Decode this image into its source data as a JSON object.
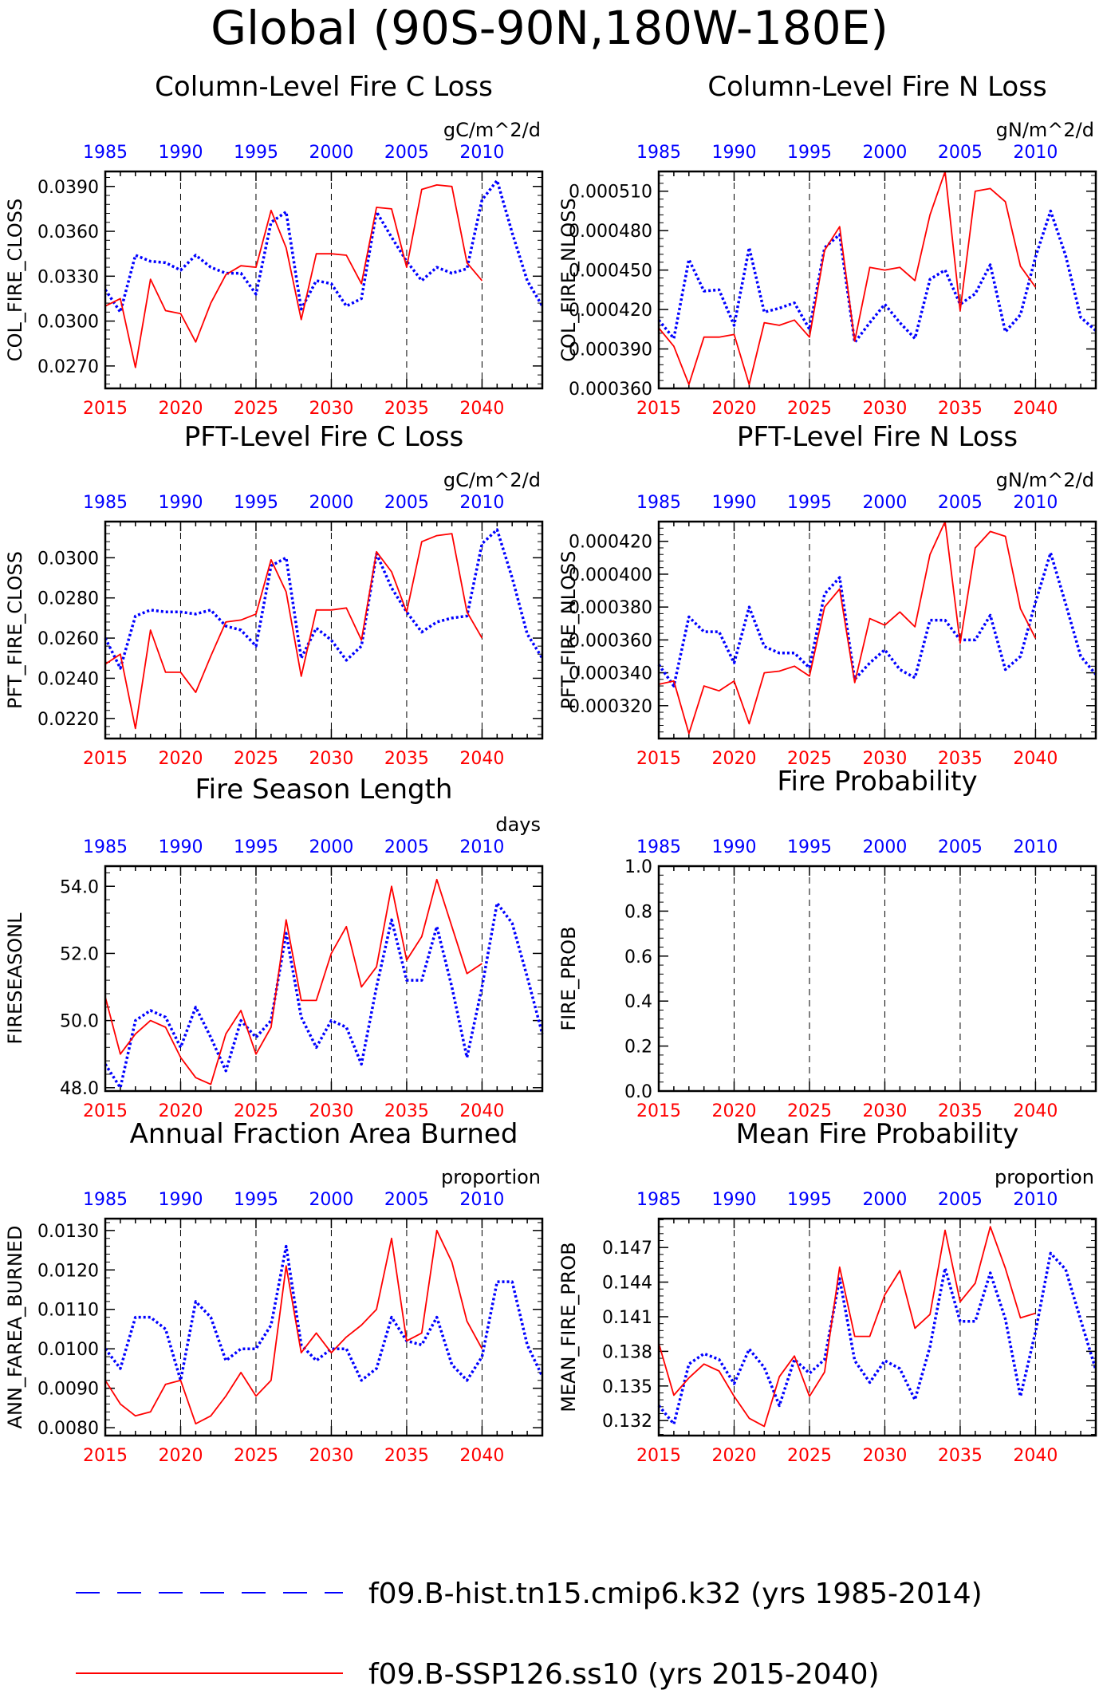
{
  "page_title": "Global (90S-90N,180W-180E)",
  "colors": {
    "hist": "#0000ff",
    "ssp": "#ff0000",
    "axis": "#000000"
  },
  "legend": {
    "hist_label": "f09.B-hist.tn15.cmip6.k32 (yrs 1985-2014)",
    "ssp_label": "f09.B-SSP126.ss10 (yrs 2015-2040)"
  },
  "chart_data": [
    {
      "type": "line",
      "title": "Column-Level Fire C Loss",
      "ylabel": "COL_FIRE_CLOSS",
      "units": "gC/m^2/d",
      "ylim": [
        0.0255,
        0.04
      ],
      "yticks": [
        0.027,
        0.03,
        0.033,
        0.036,
        0.039
      ],
      "ydec": 4,
      "series": [
        {
          "name": "f09.B-hist.tn15.cmip6.k32 (yrs 1985-2014)",
          "values": [
            0.0321,
            0.0306,
            0.0344,
            0.034,
            0.0339,
            0.0334,
            0.0344,
            0.0336,
            0.0332,
            0.0332,
            0.0318,
            0.0366,
            0.0373,
            0.0308,
            0.0327,
            0.0325,
            0.031,
            0.0315,
            0.0373,
            0.0356,
            0.034,
            0.0327,
            0.0336,
            0.0332,
            0.0335,
            0.0381,
            0.0394,
            0.0359,
            0.0327,
            0.031
          ]
        },
        {
          "name": "f09.B-SSP126.ss10 (yrs 2015-2040)",
          "values": [
            0.031,
            0.0315,
            0.0269,
            0.0328,
            0.0307,
            0.0305,
            0.0286,
            0.0312,
            0.0331,
            0.0337,
            0.0336,
            0.0374,
            0.0349,
            0.0301,
            0.0345,
            0.0345,
            0.0344,
            0.0325,
            0.0376,
            0.0375,
            0.0336,
            0.0388,
            0.0391,
            0.039,
            0.0339,
            0.0327
          ]
        }
      ]
    },
    {
      "type": "line",
      "title": "Column-Level Fire N Loss",
      "ylabel": "COL_FIRE_NLOSS",
      "units": "gN/m^2/d",
      "ylim": [
        0.00036,
        0.000525
      ],
      "yticks": [
        0.00036,
        0.00039,
        0.00042,
        0.00045,
        0.00048,
        0.00051
      ],
      "ydec": 6,
      "series": [
        {
          "name": "f09.B-hist.tn15.cmip6.k32 (yrs 1985-2014)",
          "values": [
            0.000412,
            0.000398,
            0.000458,
            0.000434,
            0.000435,
            0.000408,
            0.000467,
            0.000418,
            0.000421,
            0.000425,
            0.000405,
            0.000467,
            0.000477,
            0.000395,
            0.00041,
            0.000424,
            0.00041,
            0.000398,
            0.000443,
            0.00045,
            0.000424,
            0.000432,
            0.000454,
            0.000403,
            0.000416,
            0.00046,
            0.000495,
            0.000461,
            0.000414,
            0.000404
          ]
        },
        {
          "name": "f09.B-SSP126.ss10 (yrs 2015-2040)",
          "values": [
            0.000406,
            0.000392,
            0.000363,
            0.000399,
            0.000399,
            0.000401,
            0.000363,
            0.00041,
            0.000408,
            0.000412,
            0.000399,
            0.000465,
            0.000483,
            0.000396,
            0.000452,
            0.00045,
            0.000452,
            0.000442,
            0.000492,
            0.000525,
            0.000419,
            0.00051,
            0.000512,
            0.000502,
            0.000453,
            0.000437
          ]
        }
      ]
    },
    {
      "type": "line",
      "title": "PFT-Level Fire C Loss",
      "ylabel": "PFT_FIRE_CLOSS",
      "units": "gC/m^2/d",
      "ylim": [
        0.021,
        0.0318
      ],
      "yticks": [
        0.022,
        0.024,
        0.026,
        0.028,
        0.03
      ],
      "ydec": 4,
      "series": [
        {
          "name": "f09.B-hist.tn15.cmip6.k32 (yrs 1985-2014)",
          "values": [
            0.026,
            0.0245,
            0.0271,
            0.0274,
            0.0273,
            0.0273,
            0.0272,
            0.0274,
            0.0266,
            0.0264,
            0.0256,
            0.0296,
            0.03,
            0.025,
            0.0265,
            0.0259,
            0.0249,
            0.0256,
            0.0302,
            0.0285,
            0.0273,
            0.0263,
            0.0268,
            0.027,
            0.0271,
            0.0307,
            0.0314,
            0.029,
            0.0262,
            0.025
          ]
        },
        {
          "name": "f09.B-SSP126.ss10 (yrs 2015-2040)",
          "values": [
            0.0247,
            0.0252,
            0.0215,
            0.0264,
            0.0243,
            0.0243,
            0.0233,
            0.0251,
            0.0268,
            0.0269,
            0.0272,
            0.0299,
            0.0283,
            0.0241,
            0.0274,
            0.0274,
            0.0275,
            0.0259,
            0.0303,
            0.0293,
            0.0273,
            0.0308,
            0.0311,
            0.0312,
            0.0273,
            0.026
          ]
        }
      ]
    },
    {
      "type": "line",
      "title": "PFT-Level Fire N Loss",
      "ylabel": "PFT_FIRE_NLOSS",
      "units": "gN/m^2/d",
      "ylim": [
        0.0003,
        0.000432
      ],
      "yticks": [
        0.00032,
        0.00034,
        0.00036,
        0.00038,
        0.0004,
        0.00042
      ],
      "ydec": 6,
      "series": [
        {
          "name": "f09.B-hist.tn15.cmip6.k32 (yrs 1985-2014)",
          "values": [
            0.000345,
            0.000332,
            0.000374,
            0.000365,
            0.000365,
            0.000346,
            0.00038,
            0.000356,
            0.000352,
            0.000352,
            0.000343,
            0.000388,
            0.000398,
            0.000336,
            0.000346,
            0.000354,
            0.000342,
            0.000337,
            0.000372,
            0.000372,
            0.00036,
            0.00036,
            0.000375,
            0.000342,
            0.00035,
            0.000383,
            0.000413,
            0.000382,
            0.00035,
            0.000339
          ]
        },
        {
          "name": "f09.B-SSP126.ss10 (yrs 2015-2040)",
          "values": [
            0.000333,
            0.000335,
            0.000303,
            0.000332,
            0.000329,
            0.000335,
            0.000309,
            0.00034,
            0.000341,
            0.000344,
            0.000338,
            0.00038,
            0.000391,
            0.000334,
            0.000373,
            0.000369,
            0.000377,
            0.000368,
            0.000412,
            0.000432,
            0.000358,
            0.000416,
            0.000426,
            0.000423,
            0.000379,
            0.000361
          ]
        }
      ]
    },
    {
      "type": "line",
      "title": "Fire Season Length",
      "ylabel": "FIRESEASONL",
      "units": "days",
      "ylim": [
        47.9,
        54.6
      ],
      "yticks": [
        48.0,
        50.0,
        52.0,
        54.0
      ],
      "ydec": 1,
      "series": [
        {
          "name": "f09.B-hist.tn15.cmip6.k32 (yrs 1985-2014)",
          "values": [
            48.7,
            48.0,
            50.0,
            50.3,
            50.1,
            49.2,
            50.4,
            49.5,
            48.5,
            50.0,
            49.5,
            50.0,
            52.6,
            50.1,
            49.2,
            50.0,
            49.8,
            48.7,
            51.0,
            53.0,
            51.2,
            51.2,
            52.8,
            51.0,
            48.9,
            51.0,
            53.5,
            52.9,
            51.3,
            49.6
          ]
        },
        {
          "name": "f09.B-SSP126.ss10 (yrs 2015-2040)",
          "values": [
            50.7,
            49.0,
            49.6,
            50.0,
            49.8,
            48.9,
            48.3,
            48.1,
            49.6,
            50.3,
            49.0,
            49.8,
            53.0,
            50.6,
            50.6,
            52.0,
            52.8,
            51.0,
            51.6,
            54.0,
            51.8,
            52.5,
            54.2,
            52.8,
            51.4,
            51.7
          ]
        }
      ]
    },
    {
      "type": "line",
      "title": "Fire Probability",
      "ylabel": "FIRE_PROB",
      "units": "",
      "ylim": [
        0.0,
        1.0
      ],
      "yticks": [
        0.0,
        0.2,
        0.4,
        0.6,
        0.8,
        1.0
      ],
      "ydec": 1,
      "series": []
    },
    {
      "type": "line",
      "title": "Annual Fraction Area Burned",
      "ylabel": "ANN_FAREA_BURNED",
      "units": "proportion",
      "ylim": [
        0.0078,
        0.0133
      ],
      "yticks": [
        0.008,
        0.009,
        0.01,
        0.011,
        0.012,
        0.013
      ],
      "ydec": 4,
      "series": [
        {
          "name": "f09.B-hist.tn15.cmip6.k32 (yrs 1985-2014)",
          "values": [
            0.01,
            0.0095,
            0.0108,
            0.0108,
            0.0105,
            0.0092,
            0.0112,
            0.0108,
            0.0097,
            0.01,
            0.01,
            0.0106,
            0.0126,
            0.0101,
            0.0097,
            0.01,
            0.01,
            0.0092,
            0.0095,
            0.0108,
            0.0102,
            0.0101,
            0.0108,
            0.0096,
            0.0092,
            0.0098,
            0.0117,
            0.0117,
            0.0101,
            0.0093
          ]
        },
        {
          "name": "f09.B-SSP126.ss10 (yrs 2015-2040)",
          "values": [
            0.0092,
            0.0086,
            0.0083,
            0.0084,
            0.0091,
            0.0092,
            0.0081,
            0.0083,
            0.0088,
            0.0094,
            0.0088,
            0.0092,
            0.0121,
            0.0099,
            0.0104,
            0.0099,
            0.0103,
            0.0106,
            0.011,
            0.0128,
            0.0102,
            0.0104,
            0.013,
            0.0122,
            0.0107,
            0.01
          ]
        }
      ]
    },
    {
      "type": "line",
      "title": "Mean Fire Probability",
      "ylabel": "MEAN_FIRE_PROB",
      "units": "proportion",
      "ylim": [
        0.1307,
        0.1495
      ],
      "yticks": [
        0.132,
        0.135,
        0.138,
        0.141,
        0.144,
        0.147
      ],
      "ydec": 3,
      "series": [
        {
          "name": "f09.B-hist.tn15.cmip6.k32 (yrs 1985-2014)",
          "values": [
            0.1333,
            0.1317,
            0.1369,
            0.1378,
            0.1373,
            0.1352,
            0.1382,
            0.1366,
            0.1333,
            0.1373,
            0.1361,
            0.1373,
            0.1443,
            0.1372,
            0.1353,
            0.1372,
            0.1365,
            0.1338,
            0.1384,
            0.1452,
            0.1406,
            0.1406,
            0.1448,
            0.1408,
            0.1341,
            0.1397,
            0.1465,
            0.1451,
            0.1407,
            0.1364
          ]
        },
        {
          "name": "f09.B-SSP126.ss10 (yrs 2015-2040)",
          "values": [
            0.1387,
            0.1342,
            0.1357,
            0.1369,
            0.1363,
            0.1341,
            0.1322,
            0.1315,
            0.1358,
            0.1376,
            0.1341,
            0.1362,
            0.1453,
            0.1393,
            0.1393,
            0.1429,
            0.145,
            0.14,
            0.1412,
            0.1485,
            0.1423,
            0.1439,
            0.1488,
            0.1452,
            0.1409,
            0.1413
          ]
        }
      ]
    }
  ],
  "ssp_years": [
    2015,
    2016,
    2017,
    2018,
    2019,
    2020,
    2021,
    2022,
    2023,
    2024,
    2025,
    2026,
    2027,
    2028,
    2029,
    2030,
    2031,
    2032,
    2033,
    2034,
    2035,
    2036,
    2037,
    2038,
    2039,
    2040
  ],
  "hist_years": [
    1985,
    1986,
    1987,
    1988,
    1989,
    1990,
    1991,
    1992,
    1993,
    1994,
    1995,
    1996,
    1997,
    1998,
    1999,
    2000,
    2001,
    2002,
    2003,
    2004,
    2005,
    2006,
    2007,
    2008,
    2009,
    2010,
    2011,
    2012,
    2013,
    2014
  ],
  "bottom_ticks": [
    "2015",
    "2020",
    "2025",
    "2030",
    "2035",
    "2040"
  ],
  "top_ticks": [
    "1985",
    "1990",
    "1995",
    "2000",
    "2005",
    "2010"
  ]
}
